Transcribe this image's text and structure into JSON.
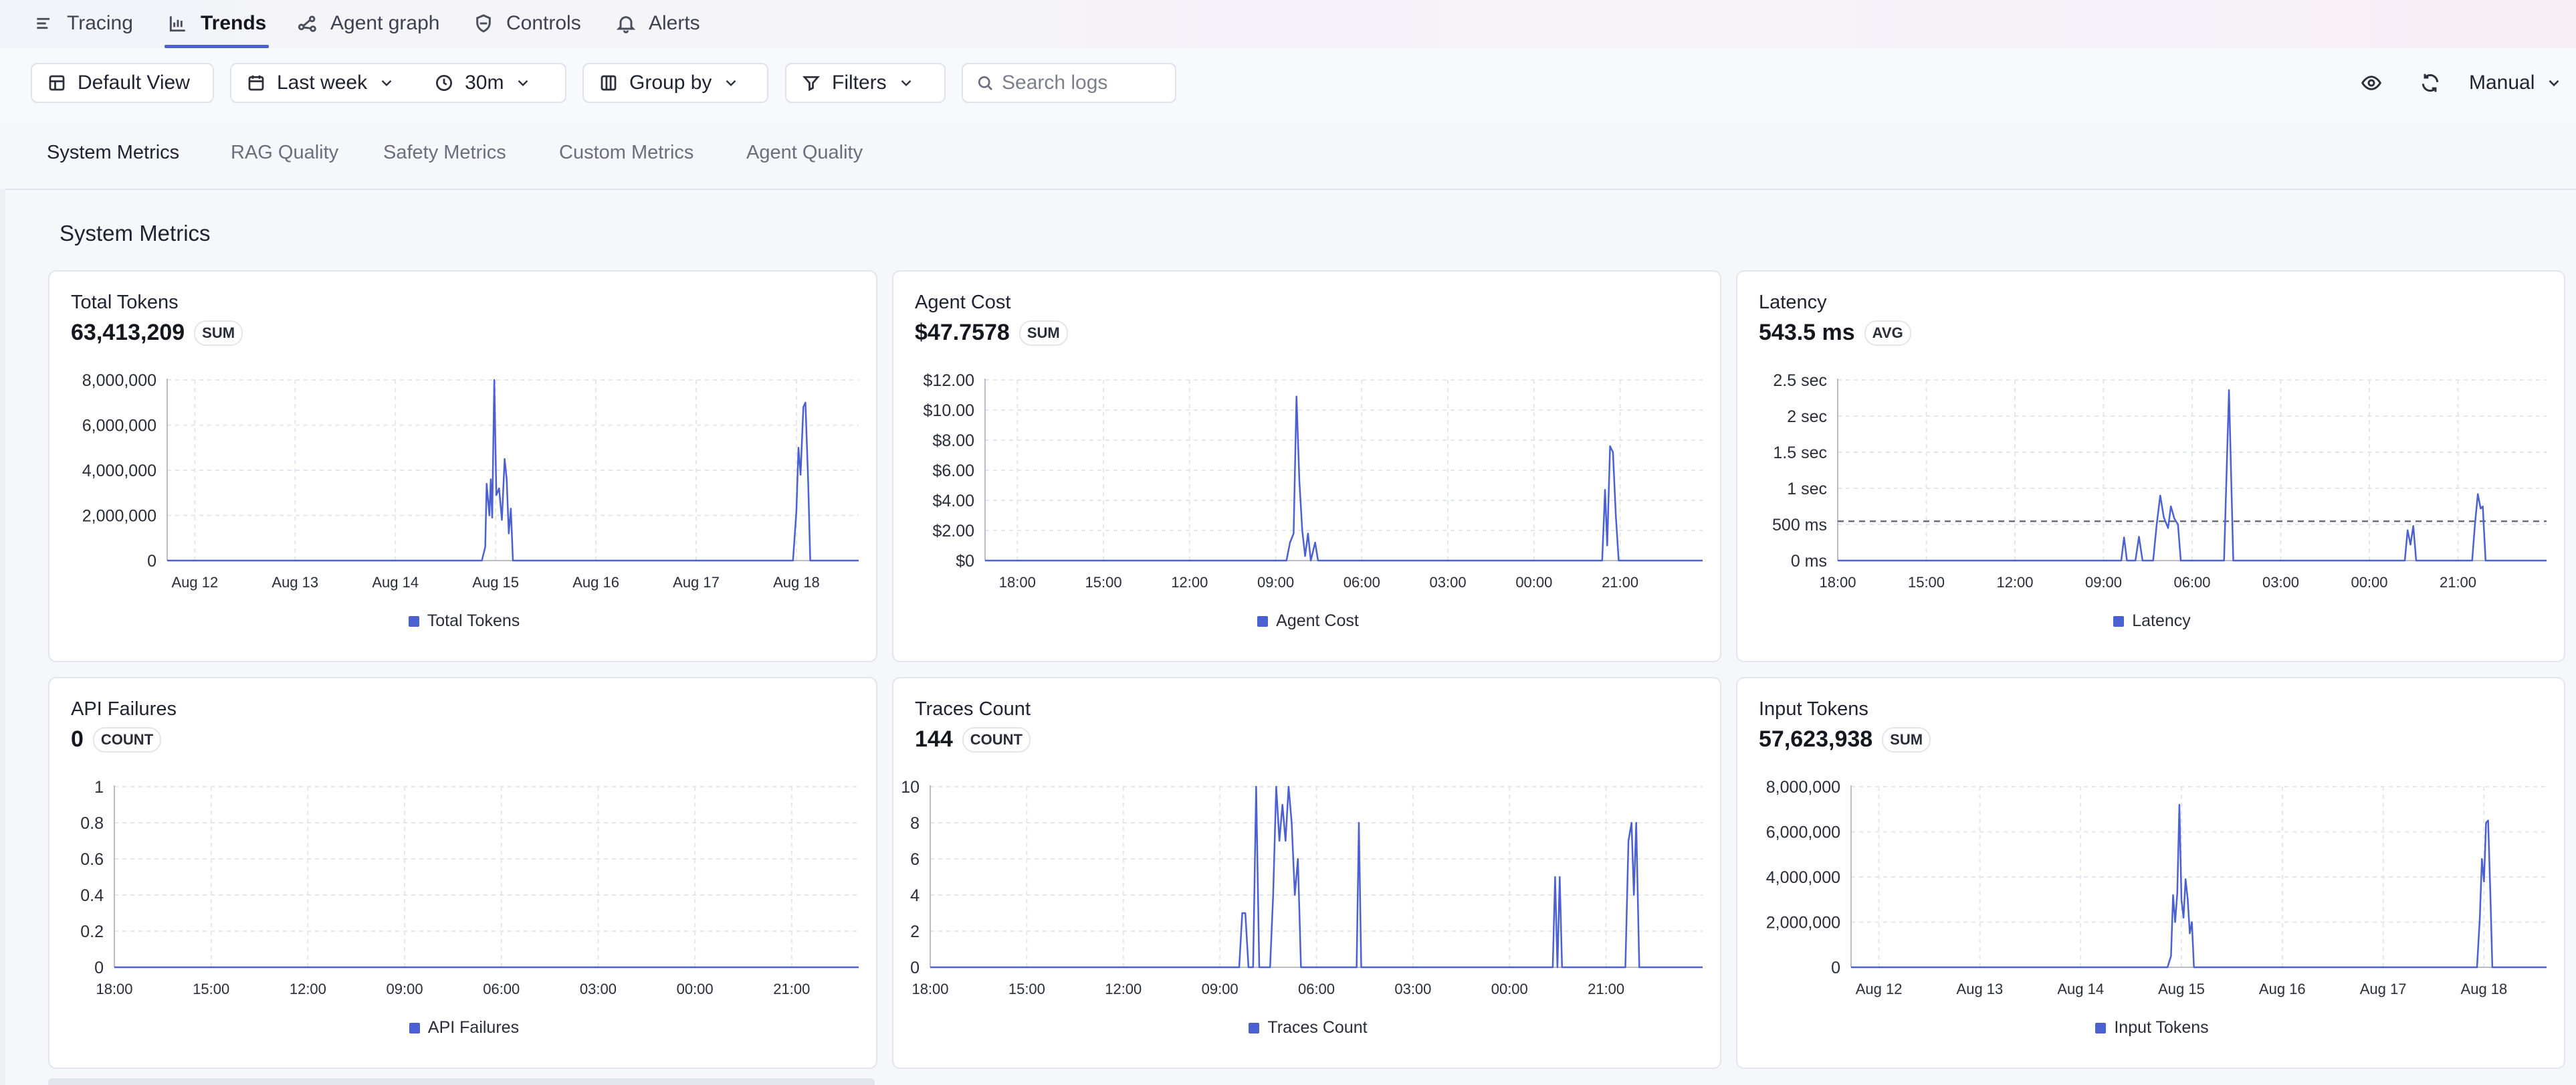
{
  "nav": {
    "items": [
      {
        "label": "Tracing",
        "icon": "menu-lines-icon",
        "active": false
      },
      {
        "label": "Trends",
        "icon": "bar-chart-icon",
        "active": true
      },
      {
        "label": "Agent graph",
        "icon": "graph-nodes-icon",
        "active": false
      },
      {
        "label": "Controls",
        "icon": "shield-icon",
        "active": false
      },
      {
        "label": "Alerts",
        "icon": "bell-icon",
        "active": false
      }
    ]
  },
  "toolbar": {
    "default_view": "Default View",
    "date_range": "Last week",
    "interval": "30m",
    "group_by": "Group by",
    "filters": "Filters",
    "search_placeholder": "Search logs",
    "refresh_mode": "Manual"
  },
  "tabs": [
    {
      "label": "System Metrics",
      "active": true
    },
    {
      "label": "RAG Quality",
      "active": false
    },
    {
      "label": "Safety Metrics",
      "active": false
    },
    {
      "label": "Custom Metrics",
      "active": false
    },
    {
      "label": "Agent Quality",
      "active": false
    }
  ],
  "section_title": "System Metrics",
  "colors": {
    "accent": "#4b61d1",
    "grid": "#e4e6ee",
    "axis": "#2a2d38"
  },
  "cards": [
    {
      "title": "Total Tokens",
      "value": "63,413,209",
      "agg": "SUM",
      "legend": "Total Tokens"
    },
    {
      "title": "Agent Cost",
      "value": "$47.7578",
      "agg": "SUM",
      "legend": "Agent Cost"
    },
    {
      "title": "Latency",
      "value": "543.5 ms",
      "agg": "AVG",
      "legend": "Latency"
    },
    {
      "title": "API Failures",
      "value": "0",
      "agg": "COUNT",
      "legend": "API Failures"
    },
    {
      "title": "Traces Count",
      "value": "144",
      "agg": "COUNT",
      "legend": "Traces Count"
    },
    {
      "title": "Input Tokens",
      "value": "57,623,938",
      "agg": "SUM",
      "legend": "Input Tokens"
    }
  ],
  "chart_data": [
    {
      "type": "line",
      "title": "Total Tokens",
      "series_name": "Total Tokens",
      "ylim": [
        0,
        8000000
      ],
      "y_ticks": [
        {
          "v": 0,
          "label": "0"
        },
        {
          "v": 2000000,
          "label": "2,000,000"
        },
        {
          "v": 4000000,
          "label": "4,000,000"
        },
        {
          "v": 6000000,
          "label": "6,000,000"
        },
        {
          "v": 8000000,
          "label": "8,000,000"
        }
      ],
      "x_range": [
        0,
        1
      ],
      "x_ticks": [
        {
          "v": 0.04,
          "label": "Aug 12"
        },
        {
          "v": 0.185,
          "label": "Aug 13"
        },
        {
          "v": 0.33,
          "label": "Aug 14"
        },
        {
          "v": 0.475,
          "label": "Aug 15"
        },
        {
          "v": 0.62,
          "label": "Aug 16"
        },
        {
          "v": 0.765,
          "label": "Aug 17"
        },
        {
          "v": 0.91,
          "label": "Aug 18"
        }
      ],
      "points": [
        [
          0,
          0
        ],
        [
          0.455,
          0
        ],
        [
          0.46,
          600000
        ],
        [
          0.462,
          3400000
        ],
        [
          0.466,
          2000000
        ],
        [
          0.468,
          3600000
        ],
        [
          0.47,
          1900000
        ],
        [
          0.473,
          8000000
        ],
        [
          0.476,
          2900000
        ],
        [
          0.48,
          3200000
        ],
        [
          0.484,
          1800000
        ],
        [
          0.488,
          4500000
        ],
        [
          0.491,
          3600000
        ],
        [
          0.494,
          1200000
        ],
        [
          0.497,
          2300000
        ],
        [
          0.5,
          0
        ],
        [
          0.905,
          0
        ],
        [
          0.91,
          2200000
        ],
        [
          0.913,
          5000000
        ],
        [
          0.916,
          3800000
        ],
        [
          0.92,
          6800000
        ],
        [
          0.923,
          7000000
        ],
        [
          0.927,
          3500000
        ],
        [
          0.93,
          0
        ],
        [
          1,
          0
        ]
      ]
    },
    {
      "type": "line",
      "title": "Agent Cost",
      "series_name": "Agent Cost",
      "ylim": [
        0,
        12
      ],
      "y_ticks": [
        {
          "v": 0,
          "label": "$0"
        },
        {
          "v": 2,
          "label": "$2.00"
        },
        {
          "v": 4,
          "label": "$4.00"
        },
        {
          "v": 6,
          "label": "$6.00"
        },
        {
          "v": 8,
          "label": "$8.00"
        },
        {
          "v": 10,
          "label": "$10.00"
        },
        {
          "v": 12,
          "label": "$12.00"
        }
      ],
      "x_range": [
        0,
        1
      ],
      "x_ticks": [
        {
          "v": 0.045,
          "label": "18:00"
        },
        {
          "v": 0.165,
          "label": "15:00"
        },
        {
          "v": 0.285,
          "label": "12:00"
        },
        {
          "v": 0.405,
          "label": "09:00"
        },
        {
          "v": 0.525,
          "label": "06:00"
        },
        {
          "v": 0.645,
          "label": "03:00"
        },
        {
          "v": 0.765,
          "label": "00:00"
        },
        {
          "v": 0.885,
          "label": "21:00"
        }
      ],
      "points": [
        [
          0,
          0
        ],
        [
          0.42,
          0
        ],
        [
          0.425,
          1.2
        ],
        [
          0.43,
          1.8
        ],
        [
          0.434,
          10.9
        ],
        [
          0.438,
          5.3
        ],
        [
          0.442,
          2.0
        ],
        [
          0.446,
          0.3
        ],
        [
          0.45,
          1.8
        ],
        [
          0.454,
          0
        ],
        [
          0.46,
          1.2
        ],
        [
          0.464,
          0
        ],
        [
          0.86,
          0
        ],
        [
          0.864,
          4.7
        ],
        [
          0.867,
          1.0
        ],
        [
          0.871,
          7.6
        ],
        [
          0.875,
          7.2
        ],
        [
          0.879,
          3.0
        ],
        [
          0.883,
          0
        ],
        [
          1,
          0
        ]
      ]
    },
    {
      "type": "line",
      "title": "Latency",
      "series_name": "Latency",
      "ylim": [
        0,
        2.5
      ],
      "y_ticks": [
        {
          "v": 0,
          "label": "0 ms"
        },
        {
          "v": 0.5,
          "label": "500 ms"
        },
        {
          "v": 1,
          "label": "1 sec"
        },
        {
          "v": 1.5,
          "label": "1.5 sec"
        },
        {
          "v": 2,
          "label": "2 sec"
        },
        {
          "v": 2.5,
          "label": "2.5 sec"
        }
      ],
      "x_range": [
        0,
        1
      ],
      "x_ticks": [
        {
          "v": 0,
          "label": "18:00"
        },
        {
          "v": 0.125,
          "label": "15:00"
        },
        {
          "v": 0.25,
          "label": "12:00"
        },
        {
          "v": 0.375,
          "label": "09:00"
        },
        {
          "v": 0.5,
          "label": "06:00"
        },
        {
          "v": 0.625,
          "label": "03:00"
        },
        {
          "v": 0.75,
          "label": "00:00"
        },
        {
          "v": 0.875,
          "label": "21:00"
        }
      ],
      "avg_line": 0.5435,
      "points": [
        [
          0,
          0
        ],
        [
          0.4,
          0
        ],
        [
          0.404,
          0.32
        ],
        [
          0.408,
          0
        ],
        [
          0.42,
          0
        ],
        [
          0.425,
          0.33
        ],
        [
          0.43,
          0
        ],
        [
          0.445,
          0
        ],
        [
          0.45,
          0.5
        ],
        [
          0.455,
          0.9
        ],
        [
          0.46,
          0.6
        ],
        [
          0.466,
          0.45
        ],
        [
          0.47,
          0.75
        ],
        [
          0.475,
          0.58
        ],
        [
          0.48,
          0.5
        ],
        [
          0.484,
          0
        ],
        [
          0.545,
          0
        ],
        [
          0.552,
          2.36
        ],
        [
          0.558,
          0
        ],
        [
          0.8,
          0
        ],
        [
          0.804,
          0.42
        ],
        [
          0.808,
          0.22
        ],
        [
          0.812,
          0.48
        ],
        [
          0.816,
          0
        ],
        [
          0.895,
          0
        ],
        [
          0.899,
          0.5
        ],
        [
          0.903,
          0.92
        ],
        [
          0.907,
          0.72
        ],
        [
          0.91,
          0.75
        ],
        [
          0.914,
          0
        ],
        [
          1,
          0
        ]
      ]
    },
    {
      "type": "line",
      "title": "API Failures",
      "series_name": "API Failures",
      "ylim": [
        0,
        1
      ],
      "y_ticks": [
        {
          "v": 0,
          "label": "0"
        },
        {
          "v": 0.2,
          "label": "0.2"
        },
        {
          "v": 0.4,
          "label": "0.4"
        },
        {
          "v": 0.6,
          "label": "0.6"
        },
        {
          "v": 0.8,
          "label": "0.8"
        },
        {
          "v": 1,
          "label": "1"
        }
      ],
      "x_range": [
        0,
        1
      ],
      "x_ticks": [
        {
          "v": 0,
          "label": "18:00"
        },
        {
          "v": 0.13,
          "label": "15:00"
        },
        {
          "v": 0.26,
          "label": "12:00"
        },
        {
          "v": 0.39,
          "label": "09:00"
        },
        {
          "v": 0.52,
          "label": "06:00"
        },
        {
          "v": 0.65,
          "label": "03:00"
        },
        {
          "v": 0.78,
          "label": "00:00"
        },
        {
          "v": 0.91,
          "label": "21:00"
        }
      ],
      "points": [
        [
          0,
          0
        ],
        [
          1,
          0
        ]
      ]
    },
    {
      "type": "line",
      "title": "Traces Count",
      "series_name": "Traces Count",
      "ylim": [
        0,
        10
      ],
      "y_ticks": [
        {
          "v": 0,
          "label": "0"
        },
        {
          "v": 2,
          "label": "2"
        },
        {
          "v": 4,
          "label": "4"
        },
        {
          "v": 6,
          "label": "6"
        },
        {
          "v": 8,
          "label": "8"
        },
        {
          "v": 10,
          "label": "10"
        }
      ],
      "x_range": [
        0,
        1
      ],
      "x_ticks": [
        {
          "v": 0,
          "label": "18:00"
        },
        {
          "v": 0.125,
          "label": "15:00"
        },
        {
          "v": 0.25,
          "label": "12:00"
        },
        {
          "v": 0.375,
          "label": "09:00"
        },
        {
          "v": 0.5,
          "label": "06:00"
        },
        {
          "v": 0.625,
          "label": "03:00"
        },
        {
          "v": 0.75,
          "label": "00:00"
        },
        {
          "v": 0.875,
          "label": "21:00"
        }
      ],
      "points": [
        [
          0,
          0
        ],
        [
          0.4,
          0
        ],
        [
          0.404,
          3
        ],
        [
          0.408,
          3
        ],
        [
          0.412,
          0
        ],
        [
          0.418,
          0
        ],
        [
          0.422,
          10
        ],
        [
          0.426,
          0
        ],
        [
          0.44,
          0
        ],
        [
          0.444,
          4
        ],
        [
          0.448,
          10
        ],
        [
          0.452,
          7
        ],
        [
          0.456,
          9
        ],
        [
          0.46,
          7
        ],
        [
          0.464,
          10
        ],
        [
          0.468,
          8
        ],
        [
          0.472,
          4
        ],
        [
          0.476,
          6
        ],
        [
          0.48,
          0
        ],
        [
          0.552,
          0
        ],
        [
          0.555,
          8
        ],
        [
          0.558,
          0
        ],
        [
          0.806,
          0
        ],
        [
          0.809,
          5
        ],
        [
          0.812,
          0
        ],
        [
          0.815,
          5
        ],
        [
          0.818,
          0
        ],
        [
          0.9,
          0
        ],
        [
          0.904,
          7
        ],
        [
          0.908,
          8
        ],
        [
          0.911,
          4
        ],
        [
          0.914,
          8
        ],
        [
          0.918,
          0
        ],
        [
          1,
          0
        ]
      ]
    },
    {
      "type": "line",
      "title": "Input Tokens",
      "series_name": "Input Tokens",
      "ylim": [
        0,
        8000000
      ],
      "y_ticks": [
        {
          "v": 0,
          "label": "0"
        },
        {
          "v": 2000000,
          "label": "2,000,000"
        },
        {
          "v": 4000000,
          "label": "4,000,000"
        },
        {
          "v": 6000000,
          "label": "6,000,000"
        },
        {
          "v": 8000000,
          "label": "8,000,000"
        }
      ],
      "x_range": [
        0,
        1
      ],
      "x_ticks": [
        {
          "v": 0.04,
          "label": "Aug 12"
        },
        {
          "v": 0.185,
          "label": "Aug 13"
        },
        {
          "v": 0.33,
          "label": "Aug 14"
        },
        {
          "v": 0.475,
          "label": "Aug 15"
        },
        {
          "v": 0.62,
          "label": "Aug 16"
        },
        {
          "v": 0.765,
          "label": "Aug 17"
        },
        {
          "v": 0.91,
          "label": "Aug 18"
        }
      ],
      "points": [
        [
          0,
          0
        ],
        [
          0.455,
          0
        ],
        [
          0.46,
          500000
        ],
        [
          0.463,
          3200000
        ],
        [
          0.466,
          2000000
        ],
        [
          0.469,
          3300000
        ],
        [
          0.472,
          7200000
        ],
        [
          0.475,
          3000000
        ],
        [
          0.478,
          2200000
        ],
        [
          0.481,
          3900000
        ],
        [
          0.484,
          3000000
        ],
        [
          0.487,
          1500000
        ],
        [
          0.49,
          2000000
        ],
        [
          0.493,
          0
        ],
        [
          0.9,
          0
        ],
        [
          0.904,
          2200000
        ],
        [
          0.907,
          4800000
        ],
        [
          0.91,
          3800000
        ],
        [
          0.913,
          6400000
        ],
        [
          0.916,
          6500000
        ],
        [
          0.919,
          3400000
        ],
        [
          0.922,
          0
        ],
        [
          1,
          0
        ]
      ]
    }
  ]
}
